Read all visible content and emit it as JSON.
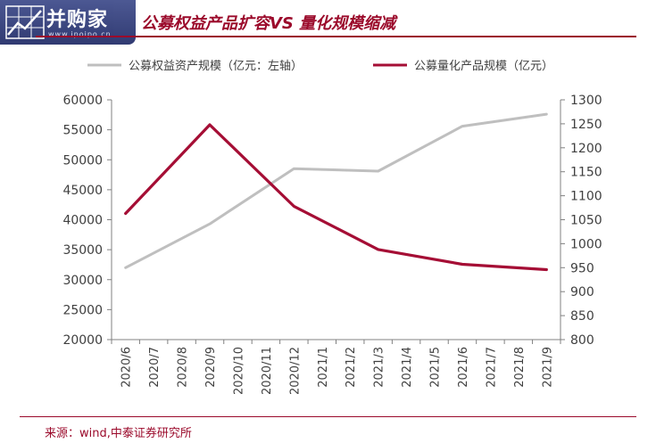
{
  "header": {
    "logo_text": "并购家",
    "logo_url": "www.ipoipo.cn",
    "title": "公募权益产品扩容VS 量化规模缩减"
  },
  "footer": {
    "source": "来源：wind,中泰证券研究所"
  },
  "colors": {
    "accent": "#9b0a2b",
    "grey_series": "#bfbfbf",
    "red_series": "#a50e35"
  },
  "chart_data": {
    "type": "line",
    "title": "公募权益产品扩容VS 量化规模缩减",
    "categories": [
      "2020/6",
      "2020/7",
      "2020/8",
      "2020/9",
      "2020/10",
      "2020/11",
      "2020/12",
      "2021/1",
      "2021/2",
      "2021/3",
      "2021/4",
      "2021/5",
      "2021/6",
      "2021/7",
      "2021/8",
      "2021/9"
    ],
    "legend_position": "top",
    "grid": false,
    "y_left": {
      "min": 20000,
      "max": 60000,
      "step": 5000,
      "ticks": [
        "20000",
        "25000",
        "30000",
        "35000",
        "40000",
        "45000",
        "50000",
        "55000",
        "60000"
      ]
    },
    "y_right": {
      "min": 800,
      "max": 1300,
      "step": 50,
      "ticks": [
        "800",
        "850",
        "900",
        "950",
        "1000",
        "1050",
        "1100",
        "1150",
        "1200",
        "1250",
        "1300"
      ]
    },
    "series": [
      {
        "name": "公募权益资产规模（亿元：左轴）",
        "axis": "left",
        "color": "#bfbfbf",
        "points": [
          [
            0,
            32000
          ],
          [
            3,
            39300
          ],
          [
            6,
            48500
          ],
          [
            9,
            48100
          ],
          [
            12,
            55600
          ],
          [
            15,
            57600
          ]
        ]
      },
      {
        "name": "公募量化产品规模（亿元）",
        "axis": "right",
        "color": "#a50e35",
        "points": [
          [
            0,
            1063
          ],
          [
            3,
            1248
          ],
          [
            6,
            1078
          ],
          [
            9,
            988
          ],
          [
            12,
            957
          ],
          [
            15,
            946
          ]
        ]
      }
    ]
  }
}
